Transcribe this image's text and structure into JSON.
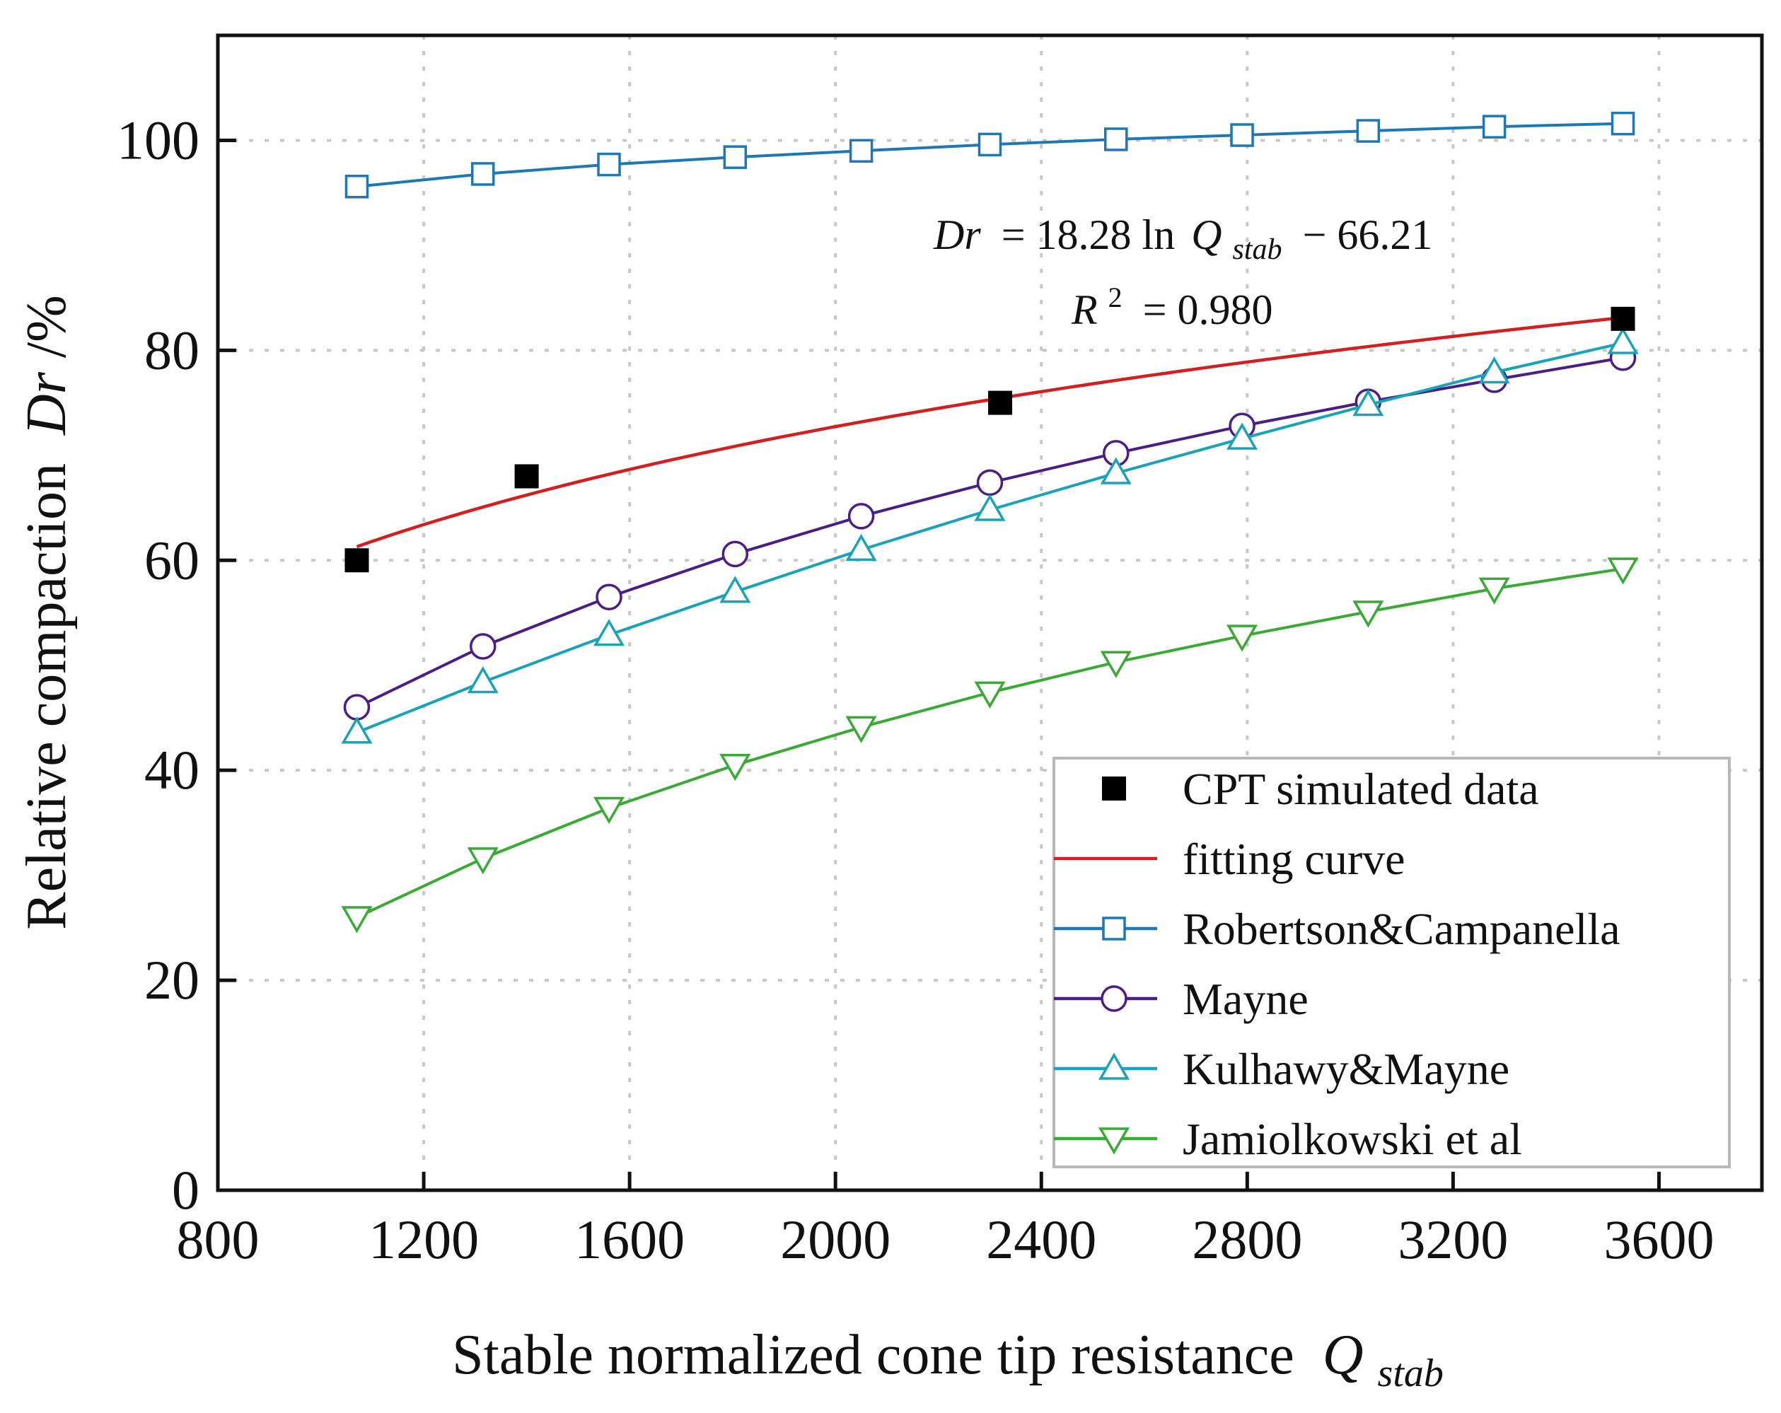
{
  "chart_data": {
    "type": "line",
    "xlabel": "Stable normalized cone tip resistance",
    "xlabel_symbol": "Q",
    "xlabel_subscript": "stab",
    "ylabel": "Relative compaction",
    "ylabel_symbol": "Dr",
    "ylabel_unit": "/%",
    "xlim": [
      800,
      3800
    ],
    "ylim": [
      0,
      110
    ],
    "xticks": [
      800,
      1200,
      1600,
      2000,
      2400,
      2800,
      3200,
      3600
    ],
    "yticks": [
      0,
      20,
      40,
      60,
      80,
      100
    ],
    "grid": true,
    "annotation": {
      "equation_dr": "Dr",
      "equation_mid": "= 18.28 ln",
      "equation_q": "Q",
      "equation_sub": "stab",
      "equation_end": "− 66.21",
      "r2_label": "R",
      "r2_sup": "2",
      "r2_value": "= 0.980"
    },
    "series": [
      {
        "name": "CPT simulated data",
        "kind": "scatter",
        "marker": "square-filled",
        "color": "#000000",
        "x": [
          1070,
          1400,
          2320,
          3530
        ],
        "y": [
          60,
          68,
          75,
          83
        ]
      },
      {
        "name": "fitting curve",
        "kind": "fit",
        "color": "#d21f1f",
        "coef_a": 18.28,
        "coef_b": -66.21,
        "x_range": [
          1070,
          3530
        ]
      },
      {
        "name": "Robertson&Campanella",
        "kind": "line",
        "marker": "square",
        "color": "#1f77b4",
        "x": [
          1070,
          1315,
          1560,
          1805,
          2050,
          2300,
          2545,
          2790,
          3035,
          3280,
          3530
        ],
        "y": [
          95.6,
          96.8,
          97.7,
          98.4,
          99.0,
          99.6,
          100.1,
          100.5,
          100.9,
          101.3,
          101.6
        ]
      },
      {
        "name": "Mayne",
        "kind": "line",
        "marker": "circle",
        "color": "#4b1d87",
        "x": [
          1070,
          1315,
          1560,
          1805,
          2050,
          2300,
          2545,
          2790,
          3035,
          3280,
          3530
        ],
        "y": [
          46.0,
          51.8,
          56.5,
          60.6,
          64.2,
          67.4,
          70.2,
          72.8,
          75.1,
          77.2,
          79.3
        ]
      },
      {
        "name": "Kulhawy&Mayne",
        "kind": "line",
        "marker": "triangle-up",
        "color": "#1aa3b8",
        "x": [
          1070,
          1315,
          1560,
          1805,
          2050,
          2300,
          2545,
          2790,
          3035,
          3280,
          3530
        ],
        "y": [
          43.6,
          48.4,
          52.9,
          57.0,
          61.0,
          64.8,
          68.3,
          71.6,
          74.8,
          77.9,
          80.7
        ]
      },
      {
        "name": "Jamiolkowski et al",
        "kind": "line",
        "marker": "triangle-down",
        "color": "#3aa935",
        "x": [
          1070,
          1315,
          1560,
          1805,
          2050,
          2300,
          2545,
          2790,
          3035,
          3280,
          3530
        ],
        "y": [
          26.0,
          31.6,
          36.4,
          40.5,
          44.1,
          47.4,
          50.3,
          52.8,
          55.1,
          57.3,
          59.2
        ]
      }
    ]
  }
}
